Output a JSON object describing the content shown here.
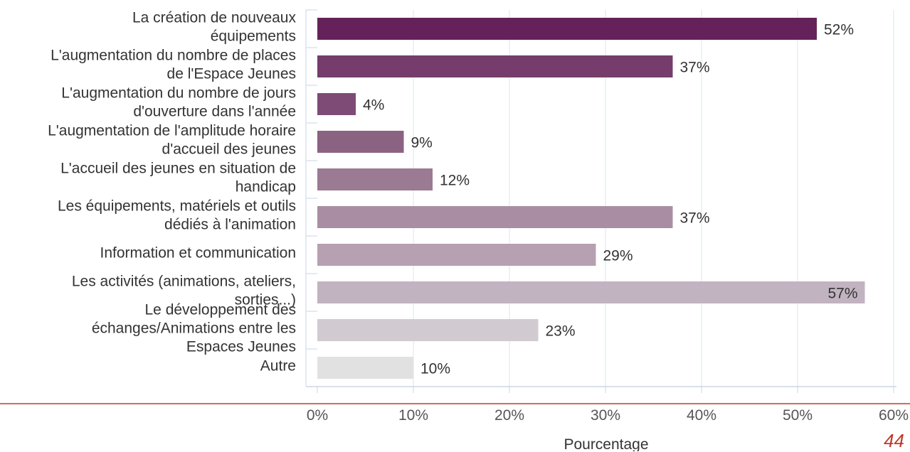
{
  "chart_data": {
    "type": "bar",
    "orientation": "horizontal",
    "categories": [
      [
        "La création de nouveaux",
        "équipements"
      ],
      [
        "L'augmentation du nombre de places",
        "de l'Espace Jeunes"
      ],
      [
        "L'augmentation du nombre de jours",
        "d'ouverture dans l'année"
      ],
      [
        "L'augmentation de l'amplitude horaire",
        "d'accueil des jeunes"
      ],
      [
        "L'accueil des jeunes en situation de",
        "handicap"
      ],
      [
        "Les équipements, matériels et outils",
        "dédiés à l'animation"
      ],
      [
        "Information et communication"
      ],
      [
        "Les activités (animations, ateliers,",
        "sorties...)"
      ],
      [
        "Le développement des",
        "échanges/Animations entre les",
        "Espaces Jeunes"
      ],
      [
        "Autre"
      ]
    ],
    "values": [
      52,
      37,
      4,
      9,
      12,
      37,
      29,
      57,
      23,
      10
    ],
    "value_labels": [
      "52%",
      "37%",
      "4%",
      "9%",
      "12%",
      "37%",
      "29%",
      "57%",
      "23%",
      "10%"
    ],
    "bar_colors": [
      "#65225a",
      "#753c6c",
      "#7e4b76",
      "#8c6283",
      "#9b7a93",
      "#a98ea3",
      "#b6a0b2",
      "#c2b3c0",
      "#d2cad1",
      "#e1e1e1"
    ],
    "xlim": [
      0,
      60
    ],
    "xticks": [
      0,
      10,
      20,
      30,
      40,
      50,
      60
    ],
    "xtick_labels": [
      "0%",
      "10%",
      "20%",
      "30%",
      "40%",
      "50%",
      "60%"
    ],
    "xlabel": "Pourcentage",
    "ylabel": "",
    "title": "",
    "grid": true,
    "accent_color": "#c0392b"
  },
  "page": {
    "number": "44"
  }
}
